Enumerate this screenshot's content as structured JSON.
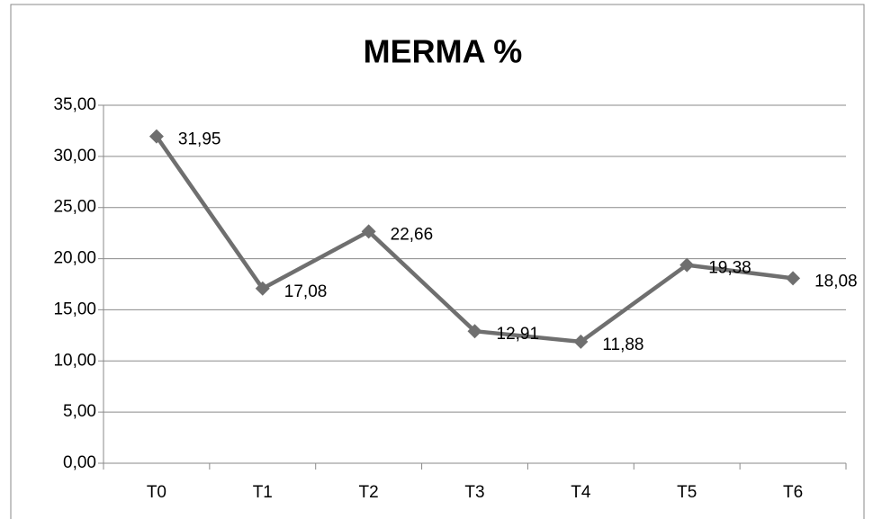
{
  "chart_data": {
    "type": "line",
    "title": "MERMA %",
    "categories": [
      "T0",
      "T1",
      "T2",
      "T3",
      "T4",
      "T5",
      "T6"
    ],
    "series": [
      {
        "name": "MERMA %",
        "color": "#6f6f6f",
        "values": [
          31.95,
          17.08,
          22.66,
          12.91,
          11.88,
          19.38,
          18.08
        ],
        "value_labels": [
          "31,95",
          "17,08",
          "22,66",
          "12,91",
          "11,88",
          "19,38",
          "18,08"
        ]
      }
    ],
    "ylim": [
      0,
      35
    ],
    "yticks": [
      {
        "value": 0,
        "label": "0,00"
      },
      {
        "value": 5,
        "label": "5,00"
      },
      {
        "value": 10,
        "label": "10,00"
      },
      {
        "value": 15,
        "label": "15,00"
      },
      {
        "value": 20,
        "label": "20,00"
      },
      {
        "value": 25,
        "label": "25,00"
      },
      {
        "value": 30,
        "label": "30,00"
      },
      {
        "value": 35,
        "label": "35,00"
      }
    ],
    "grid": true
  }
}
